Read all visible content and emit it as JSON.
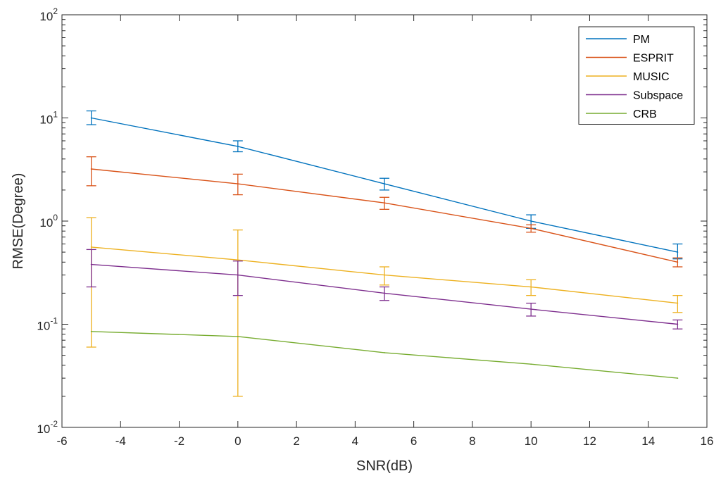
{
  "chart_data": {
    "type": "line",
    "xlabel": "SNR(dB)",
    "ylabel": "RMSE(Degree)",
    "xlim": [
      -6,
      16
    ],
    "ylim": [
      0.01,
      100
    ],
    "yscale": "log",
    "xticks": [
      -6,
      -4,
      -2,
      0,
      2,
      4,
      6,
      8,
      10,
      12,
      14,
      16
    ],
    "yticks": [
      {
        "base": "10",
        "exp": "-2"
      },
      {
        "base": "10",
        "exp": "-1"
      },
      {
        "base": "10",
        "exp": "0"
      },
      {
        "base": "10",
        "exp": "1"
      },
      {
        "base": "10",
        "exp": "2"
      }
    ],
    "grid": false,
    "legend_position": "top-right",
    "x": [
      -5,
      0,
      5,
      10,
      15
    ],
    "series": [
      {
        "name": "PM",
        "color": "#0072BD",
        "values": [
          10.0,
          5.3,
          2.3,
          1.0,
          0.5
        ],
        "error_low": [
          8.6,
          4.7,
          2.0,
          0.85,
          0.43
        ],
        "error_high": [
          11.7,
          6.0,
          2.6,
          1.15,
          0.6
        ]
      },
      {
        "name": "ESPRIT",
        "color": "#D95319",
        "values": [
          3.2,
          2.3,
          1.5,
          0.85,
          0.4
        ],
        "error_low": [
          2.2,
          1.8,
          1.3,
          0.78,
          0.36
        ],
        "error_high": [
          4.2,
          2.85,
          1.7,
          0.92,
          0.44
        ]
      },
      {
        "name": "MUSIC",
        "color": "#EDB120",
        "values": [
          0.56,
          0.42,
          0.3,
          0.23,
          0.16
        ],
        "error_low": [
          0.06,
          0.02,
          0.24,
          0.19,
          0.13
        ],
        "error_high": [
          1.08,
          0.82,
          0.36,
          0.27,
          0.19
        ]
      },
      {
        "name": "Subspace",
        "color": "#7E2F8E",
        "values": [
          0.38,
          0.3,
          0.2,
          0.14,
          0.1
        ],
        "error_low": [
          0.23,
          0.19,
          0.17,
          0.12,
          0.09
        ],
        "error_high": [
          0.53,
          0.41,
          0.23,
          0.16,
          0.11
        ]
      },
      {
        "name": "CRB",
        "color": "#77AC30",
        "values": [
          0.085,
          0.076,
          0.053,
          0.041,
          0.03
        ]
      }
    ]
  }
}
